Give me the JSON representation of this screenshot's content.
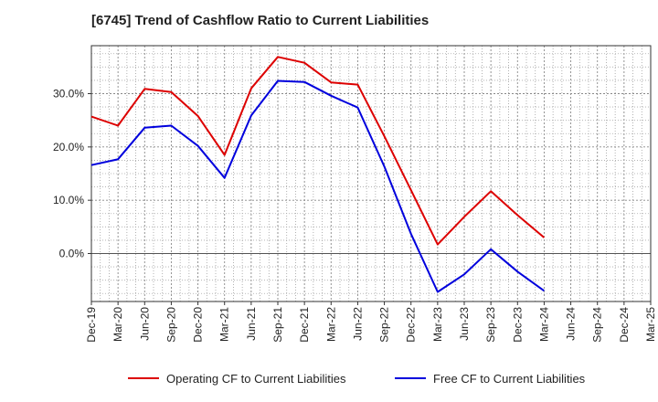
{
  "chart_data": {
    "type": "line",
    "title": "[6745]  Trend of Cashflow Ratio to Current Liabilities",
    "xlabel": "",
    "ylabel": "",
    "categories": [
      "Dec-19",
      "Mar-20",
      "Jun-20",
      "Sep-20",
      "Dec-20",
      "Mar-21",
      "Jun-21",
      "Sep-21",
      "Dec-21",
      "Mar-22",
      "Jun-22",
      "Sep-22",
      "Dec-22",
      "Mar-23",
      "Jun-23",
      "Sep-23",
      "Dec-23",
      "Mar-24",
      "Jun-24",
      "Sep-24",
      "Dec-24",
      "Mar-25"
    ],
    "y_ticks": [
      0,
      10,
      20,
      30
    ],
    "y_tick_labels": [
      "0.0%",
      "10.0%",
      "20.0%",
      "30.0%"
    ],
    "ylim": [
      -9,
      39
    ],
    "grid": true,
    "legend_position": "bottom",
    "series": [
      {
        "name": "Operating CF to Current Liabilities",
        "color": "#dd0000",
        "values": [
          25.7,
          24.0,
          30.9,
          30.3,
          25.8,
          18.5,
          31.0,
          36.9,
          35.8,
          32.1,
          31.7,
          22.0,
          11.9,
          1.7,
          6.9,
          11.7,
          7.2,
          3.0,
          null,
          null,
          null,
          null
        ]
      },
      {
        "name": "Free CF to Current Liabilities",
        "color": "#0000dd",
        "values": [
          16.6,
          17.7,
          23.6,
          24.0,
          20.2,
          14.2,
          25.9,
          32.4,
          32.2,
          29.6,
          27.4,
          16.3,
          3.7,
          -7.2,
          -3.9,
          0.8,
          -3.4,
          -7.0,
          null,
          null,
          null,
          null
        ]
      }
    ]
  }
}
